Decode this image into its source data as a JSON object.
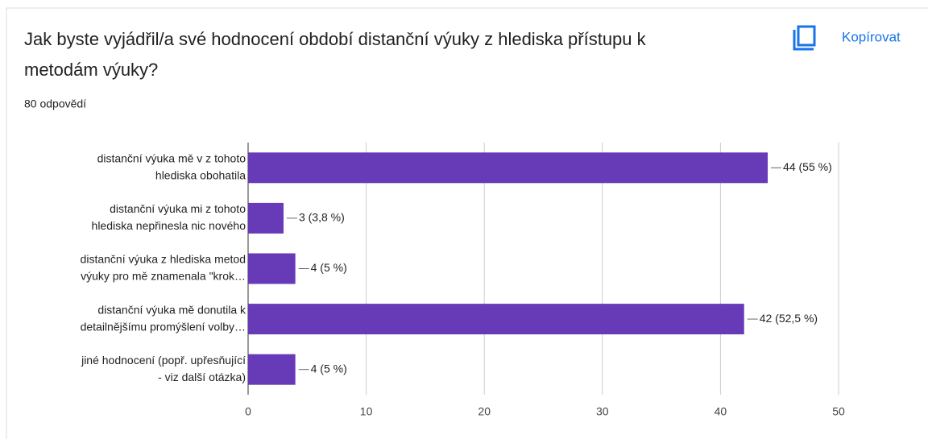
{
  "chart_data": {
    "type": "bar",
    "orientation": "horizontal",
    "title": [
      "Jak byste vyjádřil/a své hodnocení období distanční výuky z hlediska přístupu k",
      "metodám výuky?"
    ],
    "subtitle": "80 odpovědí",
    "button": "Kopírovat",
    "categories": [
      [
        "distanční výuka mě v z tohoto",
        "hlediska obohatila"
      ],
      [
        "distanční výuka mi z tohoto",
        "hlediska nepřinesla nic nového"
      ],
      [
        "distanční výuka z hlediska metod",
        "výuky pro mě znamenala \"krok…"
      ],
      [
        "distanční výuka mě donutila k",
        "detailnějšímu promýšlení volby…"
      ],
      [
        "jiné hodnocení (popř. upřesňující",
        "- viz další otázka)"
      ]
    ],
    "values": [
      44,
      3,
      4,
      42,
      4
    ],
    "value_labels": [
      "44 (55 %)",
      "3 (3,8 %)",
      "4 (5 %)",
      "42 (52,5 %)",
      "4 (5 %)"
    ],
    "color": "#673ab7",
    "xlim": [
      0,
      50
    ],
    "xticks": [
      0,
      10,
      20,
      30,
      40,
      50
    ],
    "grid": true
  }
}
